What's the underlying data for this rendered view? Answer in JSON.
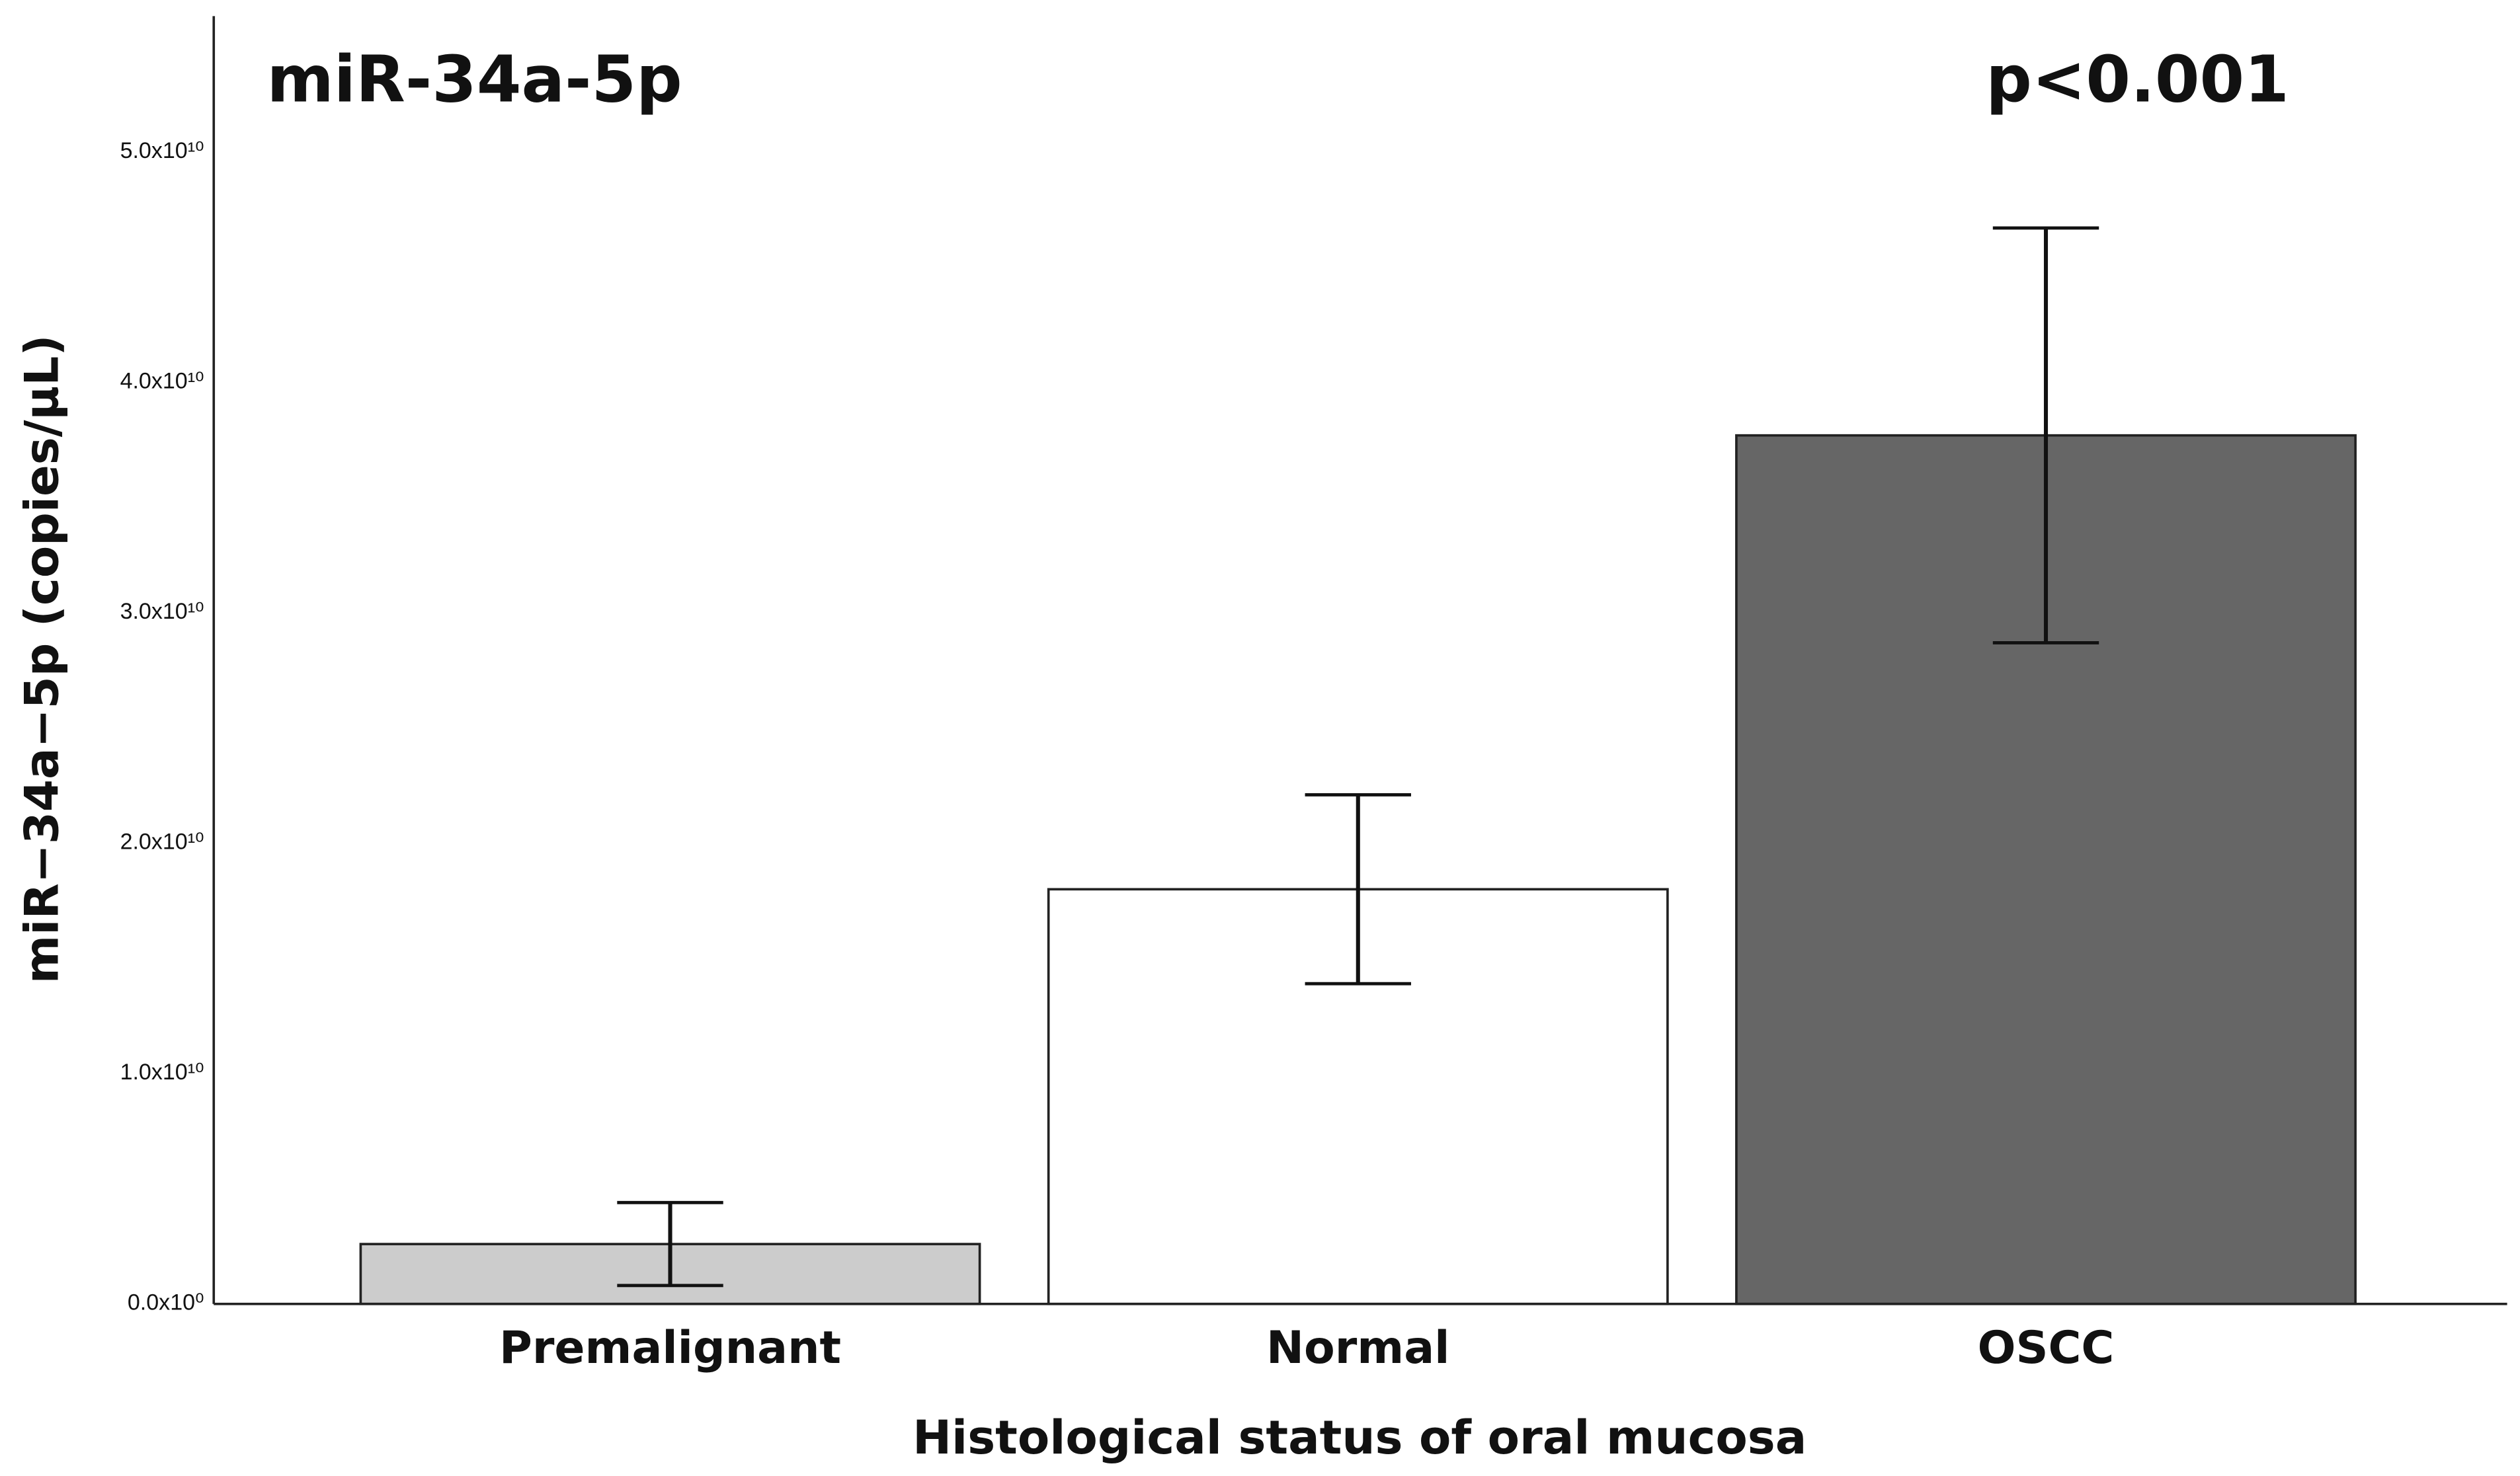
{
  "chart_data": {
    "type": "bar",
    "annotations": [
      "miR-34a-5p",
      "p<0.001"
    ],
    "x_label": "Histological status of oral mucosa",
    "y_label": "miR−34a−5p (copies/µL)",
    "categories": [
      "Premalignant",
      "Normal",
      "OSCC"
    ],
    "values": [
      2600000000,
      18000000000,
      37700000000
    ],
    "errors": [
      1800000000,
      4100000000,
      9000000000
    ],
    "colors": [
      "#cccccc",
      "#ffffff",
      "#666666"
    ],
    "ylim": [
      0,
      55900000000
    ],
    "yticks": [
      {
        "value": 0,
        "label": "0.0x10⁰"
      },
      {
        "value": 10000000000,
        "label": "1.0x10¹⁰"
      },
      {
        "value": 20000000000,
        "label": "2.0x10¹⁰"
      },
      {
        "value": 30000000000,
        "label": "3.0x10¹⁰"
      },
      {
        "value": 40000000000,
        "label": "4.0x10¹⁰"
      },
      {
        "value": 50000000000,
        "label": "5.0x10¹⁰"
      }
    ],
    "grid": false
  }
}
